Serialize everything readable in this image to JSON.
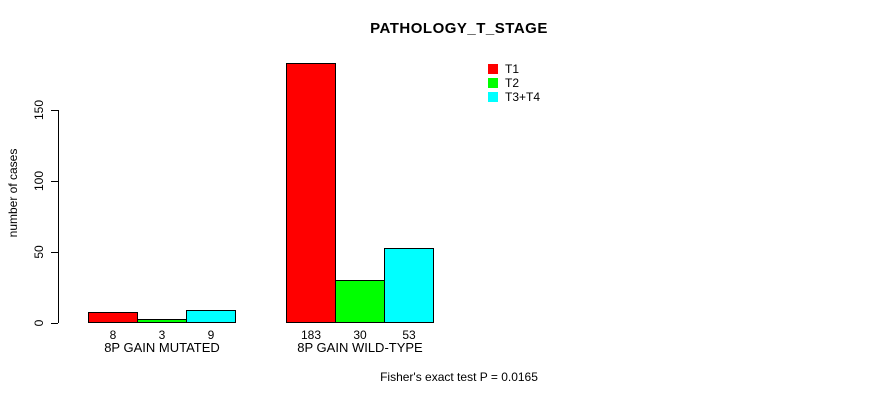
{
  "chart_data": {
    "type": "bar",
    "title": "PATHOLOGY_T_STAGE",
    "categories": [
      "8P GAIN MUTATED",
      "8P GAIN WILD-TYPE"
    ],
    "series": [
      {
        "name": "T1",
        "color": "#ff0000",
        "values": [
          8,
          183
        ]
      },
      {
        "name": "T2",
        "color": "#00ff00",
        "values": [
          3,
          30
        ]
      },
      {
        "name": "T3+T4",
        "color": "#00ffff",
        "values": [
          9,
          53
        ]
      }
    ],
    "xlabel": "",
    "ylabel": "number of cases",
    "yticks": [
      0,
      50,
      100,
      150
    ],
    "ylim": [
      0,
      183
    ],
    "grid": false,
    "bar_borders": true,
    "bar_value_labels": true,
    "legend_position": "top-right",
    "annotation": "Fisher's exact test P = 0.0165",
    "colors": {
      "background": "#ffffff",
      "axis": "#000000",
      "text": "#000000"
    }
  }
}
